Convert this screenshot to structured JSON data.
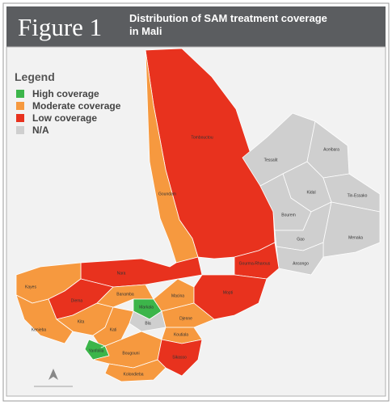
{
  "header": {
    "label": "Figure 1",
    "title": [
      "Distribution of SAM treatment coverage",
      "in Mali"
    ]
  },
  "legend": {
    "title": "Legend",
    "items": [
      {
        "label": "High coverage",
        "color": "#3cb54a"
      },
      {
        "label": "Moderate coverage",
        "color": "#f6993f"
      },
      {
        "label": "Low coverage",
        "color": "#e8321e"
      },
      {
        "label": "N/A",
        "color": "#cfcfcf"
      }
    ]
  },
  "regions": [
    {
      "name": "Tombouctou",
      "coverage": "Low coverage"
    },
    {
      "name": "Goundam",
      "coverage": "Moderate coverage"
    },
    {
      "name": "Tessalit",
      "coverage": "N/A"
    },
    {
      "name": "Aceibara",
      "coverage": "N/A"
    },
    {
      "name": "Kidal",
      "coverage": "N/A"
    },
    {
      "name": "Tin-Essako",
      "coverage": "N/A"
    },
    {
      "name": "Bourem",
      "coverage": "N/A"
    },
    {
      "name": "Gao",
      "coverage": "N/A"
    },
    {
      "name": "Menaka",
      "coverage": "N/A"
    },
    {
      "name": "Ansongo",
      "coverage": "N/A"
    },
    {
      "name": "Gourma-Rharous",
      "coverage": "Low coverage"
    },
    {
      "name": "Nara",
      "coverage": "Low coverage"
    },
    {
      "name": "Kayes",
      "coverage": "Moderate coverage"
    },
    {
      "name": "Diema",
      "coverage": "Low coverage"
    },
    {
      "name": "Kita",
      "coverage": "Moderate coverage"
    },
    {
      "name": "Kenieba",
      "coverage": "Moderate coverage"
    },
    {
      "name": "Banamba",
      "coverage": "Moderate coverage"
    },
    {
      "name": "Markala",
      "coverage": "High coverage"
    },
    {
      "name": "Macina",
      "coverage": "Moderate coverage"
    },
    {
      "name": "Mopti",
      "coverage": "Low coverage"
    },
    {
      "name": "Bla",
      "coverage": "N/A"
    },
    {
      "name": "Djenne",
      "coverage": "Moderate coverage"
    },
    {
      "name": "Kati",
      "coverage": "Moderate coverage"
    },
    {
      "name": "Koutiala",
      "coverage": "Moderate coverage"
    },
    {
      "name": "Yanfolila",
      "coverage": "High coverage"
    },
    {
      "name": "Bougouni",
      "coverage": "Moderate coverage"
    },
    {
      "name": "Sikasso",
      "coverage": "Low coverage"
    },
    {
      "name": "Kolondieba",
      "coverage": "Moderate coverage"
    }
  ]
}
